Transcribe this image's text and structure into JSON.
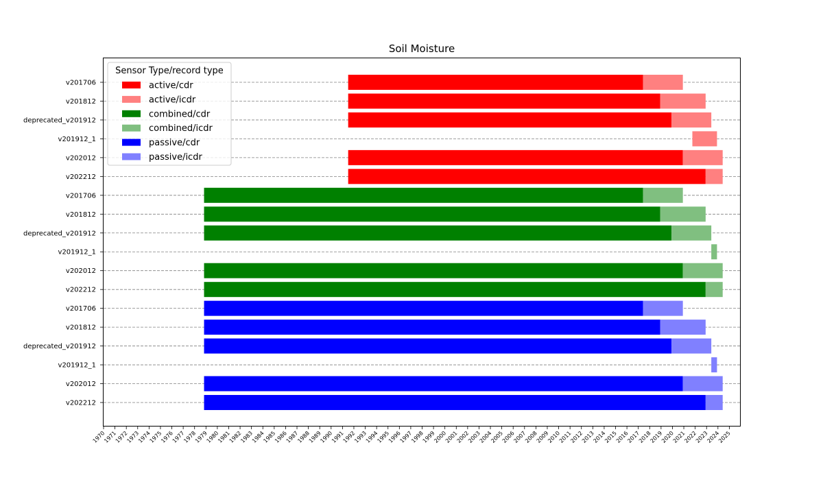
{
  "chart_data": {
    "type": "bar",
    "orientation": "horizontal",
    "title": "Soil Moisture",
    "xlabel": "",
    "ylabel": "",
    "xlim": [
      1970,
      2026
    ],
    "x_ticks": [
      "1970",
      "1971",
      "1972",
      "1973",
      "1974",
      "1975",
      "1976",
      "1977",
      "1978",
      "1979",
      "1980",
      "1981",
      "1982",
      "1983",
      "1984",
      "1985",
      "1986",
      "1987",
      "1988",
      "1989",
      "1990",
      "1991",
      "1992",
      "1993",
      "1994",
      "1995",
      "1996",
      "1997",
      "1998",
      "1999",
      "2000",
      "2001",
      "2002",
      "2003",
      "2004",
      "2005",
      "2006",
      "2007",
      "2008",
      "2009",
      "2010",
      "2011",
      "2012",
      "2013",
      "2014",
      "2015",
      "2016",
      "2017",
      "2018",
      "2019",
      "2020",
      "2021",
      "2022",
      "2023",
      "2024",
      "2025"
    ],
    "grid": "horizontal dashed",
    "legend": {
      "title": "Sensor Type/record type",
      "placement": "top-left",
      "entries": [
        {
          "label": "active/cdr",
          "color": "#ff0000"
        },
        {
          "label": "active/icdr",
          "color": "#ff8080"
        },
        {
          "label": "combined/cdr",
          "color": "#008000"
        },
        {
          "label": "combined/icdr",
          "color": "#80bf80"
        },
        {
          "label": "passive/cdr",
          "color": "#0000ff"
        },
        {
          "label": "passive/icdr",
          "color": "#8080ff"
        }
      ]
    },
    "rows": [
      {
        "label": "v201706",
        "cdr": [
          "1991-07",
          "2017-06"
        ],
        "icdr": [
          "2017-06",
          "2020-12"
        ],
        "cdr_color": "#ff0000",
        "icdr_color": "#ff8080"
      },
      {
        "label": "v201812",
        "cdr": [
          "1991-07",
          "2018-12"
        ],
        "icdr": [
          "2018-12",
          "2022-12"
        ],
        "cdr_color": "#ff0000",
        "icdr_color": "#ff8080"
      },
      {
        "label": "deprecated_v201912",
        "cdr": [
          "1991-07",
          "2019-12"
        ],
        "icdr": [
          "2019-12",
          "2023-06"
        ],
        "cdr_color": "#ff0000",
        "icdr_color": "#ff8080"
      },
      {
        "label": "v201912_1",
        "cdr": null,
        "icdr": [
          "2021-10",
          "2023-12"
        ],
        "cdr_color": "#ff0000",
        "icdr_color": "#ff8080"
      },
      {
        "label": "v202012",
        "cdr": [
          "1991-07",
          "2020-12"
        ],
        "icdr": [
          "2020-12",
          "2024-06"
        ],
        "cdr_color": "#ff0000",
        "icdr_color": "#ff8080"
      },
      {
        "label": "v202212",
        "cdr": [
          "1991-07",
          "2022-12"
        ],
        "icdr": [
          "2022-12",
          "2024-06"
        ],
        "cdr_color": "#ff0000",
        "icdr_color": "#ff8080"
      },
      {
        "label": "v201706",
        "cdr": [
          "1978-11",
          "2017-06"
        ],
        "icdr": [
          "2017-06",
          "2020-12"
        ],
        "cdr_color": "#008000",
        "icdr_color": "#80bf80"
      },
      {
        "label": "v201812",
        "cdr": [
          "1978-11",
          "2018-12"
        ],
        "icdr": [
          "2018-12",
          "2022-12"
        ],
        "cdr_color": "#008000",
        "icdr_color": "#80bf80"
      },
      {
        "label": "deprecated_v201912",
        "cdr": [
          "1978-11",
          "2019-12"
        ],
        "icdr": [
          "2019-12",
          "2023-06"
        ],
        "cdr_color": "#008000",
        "icdr_color": "#80bf80"
      },
      {
        "label": "v201912_1",
        "cdr": null,
        "icdr": [
          "2023-06",
          "2023-12"
        ],
        "cdr_color": "#008000",
        "icdr_color": "#80bf80"
      },
      {
        "label": "v202012",
        "cdr": [
          "1978-11",
          "2020-12"
        ],
        "icdr": [
          "2020-12",
          "2024-06"
        ],
        "cdr_color": "#008000",
        "icdr_color": "#80bf80"
      },
      {
        "label": "v202212",
        "cdr": [
          "1978-11",
          "2022-12"
        ],
        "icdr": [
          "2022-12",
          "2024-06"
        ],
        "cdr_color": "#008000",
        "icdr_color": "#80bf80"
      },
      {
        "label": "v201706",
        "cdr": [
          "1978-11",
          "2017-06"
        ],
        "icdr": [
          "2017-06",
          "2020-12"
        ],
        "cdr_color": "#0000ff",
        "icdr_color": "#8080ff"
      },
      {
        "label": "v201812",
        "cdr": [
          "1978-11",
          "2018-12"
        ],
        "icdr": [
          "2018-12",
          "2022-12"
        ],
        "cdr_color": "#0000ff",
        "icdr_color": "#8080ff"
      },
      {
        "label": "deprecated_v201912",
        "cdr": [
          "1978-11",
          "2019-12"
        ],
        "icdr": [
          "2019-12",
          "2023-06"
        ],
        "cdr_color": "#0000ff",
        "icdr_color": "#8080ff"
      },
      {
        "label": "v201912_1",
        "cdr": null,
        "icdr": [
          "2023-06",
          "2023-12"
        ],
        "cdr_color": "#0000ff",
        "icdr_color": "#8080ff"
      },
      {
        "label": "v202012",
        "cdr": [
          "1978-11",
          "2020-12"
        ],
        "icdr": [
          "2020-12",
          "2024-06"
        ],
        "cdr_color": "#0000ff",
        "icdr_color": "#8080ff"
      },
      {
        "label": "v202212",
        "cdr": [
          "1978-11",
          "2022-12"
        ],
        "icdr": [
          "2022-12",
          "2024-06"
        ],
        "cdr_color": "#0000ff",
        "icdr_color": "#8080ff"
      }
    ]
  }
}
